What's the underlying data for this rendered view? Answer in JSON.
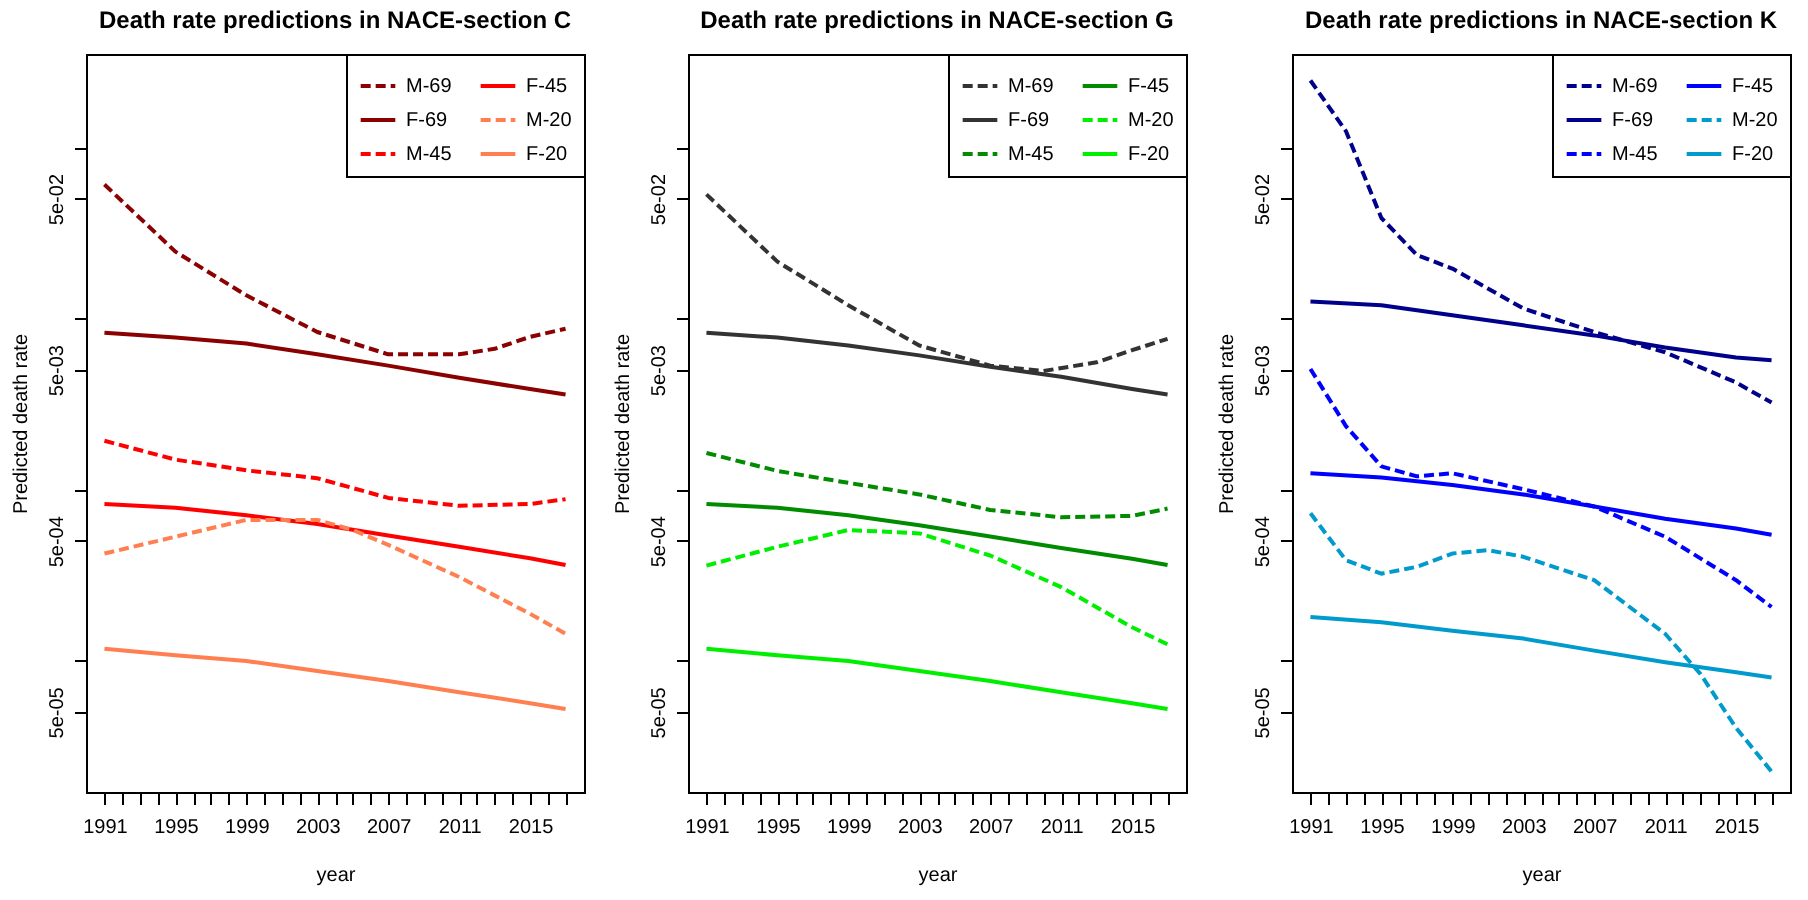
{
  "chart_data": [
    {
      "type": "line",
      "title": "Death rate predictions in NACE-section C",
      "xlabel": "year",
      "ylabel": "Predicted death rate",
      "log": true,
      "legend": "top right",
      "x": [
        1991,
        1995,
        1999,
        2003,
        2007,
        2011,
        2015,
        2017
      ],
      "xlim": [
        1989.96,
        2018.04
      ],
      "ylim": [
        1.7e-05,
        0.35
      ],
      "xticks": [
        1991,
        {
          "value": 1992,
          "label": null
        },
        {
          "value": 1993,
          "label": null
        },
        {
          "value": 1994,
          "label": null
        },
        1995,
        {
          "value": 1996,
          "label": null
        },
        {
          "value": 1997,
          "label": null
        },
        {
          "value": 1998,
          "label": null
        },
        1999,
        {
          "value": 2000,
          "label": null
        },
        {
          "value": 2001,
          "label": null
        },
        {
          "value": 2002,
          "label": null
        },
        2003,
        {
          "value": 2004,
          "label": null
        },
        {
          "value": 2005,
          "label": null
        },
        {
          "value": 2006,
          "label": null
        },
        2007,
        {
          "value": 2008,
          "label": null
        },
        {
          "value": 2009,
          "label": null
        },
        {
          "value": 2010,
          "label": null
        },
        2011,
        {
          "value": 2012,
          "label": null
        },
        {
          "value": 2013,
          "label": null
        },
        {
          "value": 2014,
          "label": null
        },
        2015,
        {
          "value": 2016,
          "label": null
        },
        {
          "value": 2017,
          "label": null
        }
      ],
      "yticks": [
        {
          "value": 0.1,
          "label": null
        },
        {
          "value": 0.05,
          "label": "5e-02"
        },
        {
          "value": 0.01,
          "label": null
        },
        {
          "value": 0.005,
          "label": "5e-03"
        },
        {
          "value": 0.001,
          "label": null
        },
        {
          "value": 0.0005,
          "label": "5e-04"
        },
        {
          "value": 0.0001,
          "label": null
        },
        {
          "value": 5e-05,
          "label": "5e-05"
        }
      ],
      "series": [
        {
          "name": "M-69",
          "color": "#8b0000",
          "line_style": "dashed",
          "x": [
            1991,
            1995,
            1999,
            2003,
            2007,
            2011,
            2013,
            2015,
            2017
          ],
          "values": [
            0.0604,
            0.0245,
            0.0136,
            0.0083,
            0.00615,
            0.00615,
            0.00662,
            0.00778,
            0.00867
          ]
        },
        {
          "name": "F-69",
          "color": "#8b0000",
          "line_style": "solid",
          "values": [
            0.00822,
            0.0077,
            0.00711,
            0.00615,
            0.00528,
            0.00449,
            0.00385,
            0.00358
          ]
        },
        {
          "name": "M-45",
          "color": "#ff0000",
          "line_style": "dashed",
          "values": [
            0.00192,
            0.00149,
            0.00129,
            0.00116,
            0.00089,
            0.0008,
            0.00082,
            0.000875
          ]
        },
        {
          "name": "F-45",
          "color": "#ff0000",
          "line_style": "solid",
          "values": [
            0.00082,
            0.00078,
            0.000705,
            0.000627,
            0.000537,
            0.000461,
            0.000395,
            0.000361
          ]
        },
        {
          "name": "M-20",
          "color": "#ff7f50",
          "line_style": "dashed",
          "x": [
            1991,
            1995,
            1999,
            2003,
            2005,
            2007,
            2011,
            2015,
            2017
          ],
          "values": [
            0.000421,
            0.000528,
            0.000662,
            0.000662,
            0.000578,
            0.000473,
            0.000307,
            0.000187,
            0.000143
          ]
        },
        {
          "name": "F-20",
          "color": "#ff7f50",
          "line_style": "solid",
          "values": [
            0.000117,
            0.000107,
            9.91e-05,
            8.67e-05,
            7.57e-05,
            6.5e-05,
            5.62e-05,
            5.19e-05
          ]
        }
      ]
    },
    {
      "type": "line",
      "title": "Death rate predictions in NACE-section G",
      "xlabel": "year",
      "ylabel": "Predicted death rate",
      "log": true,
      "legend": "top right",
      "x": [
        1991,
        1995,
        1999,
        2003,
        2007,
        2011,
        2015,
        2017
      ],
      "xlim": [
        1989.96,
        2018.04
      ],
      "ylim": [
        1.7e-05,
        0.35
      ],
      "xticks": [
        1991,
        {
          "value": 1992,
          "label": null
        },
        {
          "value": 1993,
          "label": null
        },
        {
          "value": 1994,
          "label": null
        },
        1995,
        {
          "value": 1996,
          "label": null
        },
        {
          "value": 1997,
          "label": null
        },
        {
          "value": 1998,
          "label": null
        },
        1999,
        {
          "value": 2000,
          "label": null
        },
        {
          "value": 2001,
          "label": null
        },
        {
          "value": 2002,
          "label": null
        },
        2003,
        {
          "value": 2004,
          "label": null
        },
        {
          "value": 2005,
          "label": null
        },
        {
          "value": 2006,
          "label": null
        },
        2007,
        {
          "value": 2008,
          "label": null
        },
        {
          "value": 2009,
          "label": null
        },
        {
          "value": 2010,
          "label": null
        },
        2011,
        {
          "value": 2012,
          "label": null
        },
        {
          "value": 2013,
          "label": null
        },
        {
          "value": 2014,
          "label": null
        },
        2015,
        {
          "value": 2016,
          "label": null
        },
        {
          "value": 2017,
          "label": null
        }
      ],
      "yticks": [
        {
          "value": 0.1,
          "label": null
        },
        {
          "value": 0.05,
          "label": "5e-02"
        },
        {
          "value": 0.01,
          "label": null
        },
        {
          "value": 0.005,
          "label": "5e-03"
        },
        {
          "value": 0.001,
          "label": null
        },
        {
          "value": 0.0005,
          "label": "5e-04"
        },
        {
          "value": 0.0001,
          "label": null
        },
        {
          "value": 5e-05,
          "label": "5e-05"
        }
      ],
      "series": [
        {
          "name": "M-69",
          "color": "#333333",
          "line_style": "dashed",
          "x": [
            1991,
            1995,
            1999,
            2003,
            2007,
            2010,
            2013,
            2015,
            2017
          ],
          "values": [
            0.0529,
            0.0214,
            0.0119,
            0.00692,
            0.00528,
            0.00491,
            0.00552,
            0.0065,
            0.00757
          ]
        },
        {
          "name": "F-69",
          "color": "#333333",
          "line_style": "solid",
          "values": [
            0.00822,
            0.0077,
            0.00692,
            0.00606,
            0.0052,
            0.00454,
            0.00385,
            0.00358
          ]
        },
        {
          "name": "M-45",
          "color": "#008b00",
          "line_style": "dashed",
          "values": [
            0.00163,
            0.00128,
            0.00109,
            0.000933,
            0.000757,
            0.000686,
            0.000699,
            0.000771
          ]
        },
        {
          "name": "F-45",
          "color": "#008b00",
          "line_style": "solid",
          "values": [
            0.00082,
            0.00078,
            0.000705,
            0.000616,
            0.000529,
            0.000454,
            0.000392,
            0.000361
          ]
        },
        {
          "name": "M-20",
          "color": "#00ee00",
          "line_style": "dashed",
          "values": [
            0.000358,
            0.000461,
            0.000578,
            0.000552,
            0.00041,
            0.000268,
            0.000156,
            0.000124
          ]
        },
        {
          "name": "F-20",
          "color": "#00ee00",
          "line_style": "solid",
          "values": [
            0.000117,
            0.000107,
            9.91e-05,
            8.67e-05,
            7.57e-05,
            6.5e-05,
            5.62e-05,
            5.19e-05
          ]
        }
      ]
    },
    {
      "type": "line",
      "title": "Death rate predictions in NACE-section K",
      "xlabel": "year",
      "ylabel": "Predicted death rate",
      "log": true,
      "legend": "top right",
      "x": [
        1991,
        1995,
        1999,
        2003,
        2007,
        2011,
        2015,
        2017
      ],
      "xlim": [
        1989.96,
        2018.04
      ],
      "ylim": [
        1.7e-05,
        0.35
      ],
      "xticks": [
        1991,
        {
          "value": 1992,
          "label": null
        },
        {
          "value": 1993,
          "label": null
        },
        {
          "value": 1994,
          "label": null
        },
        1995,
        {
          "value": 1996,
          "label": null
        },
        {
          "value": 1997,
          "label": null
        },
        {
          "value": 1998,
          "label": null
        },
        1999,
        {
          "value": 2000,
          "label": null
        },
        {
          "value": 2001,
          "label": null
        },
        {
          "value": 2002,
          "label": null
        },
        2003,
        {
          "value": 2004,
          "label": null
        },
        {
          "value": 2005,
          "label": null
        },
        {
          "value": 2006,
          "label": null
        },
        2007,
        {
          "value": 2008,
          "label": null
        },
        {
          "value": 2009,
          "label": null
        },
        {
          "value": 2010,
          "label": null
        },
        2011,
        {
          "value": 2012,
          "label": null
        },
        {
          "value": 2013,
          "label": null
        },
        {
          "value": 2014,
          "label": null
        },
        2015,
        {
          "value": 2016,
          "label": null
        },
        {
          "value": 2017,
          "label": null
        }
      ],
      "yticks": [
        {
          "value": 0.1,
          "label": null
        },
        {
          "value": 0.05,
          "label": "5e-02"
        },
        {
          "value": 0.01,
          "label": null
        },
        {
          "value": 0.005,
          "label": "5e-03"
        },
        {
          "value": 0.001,
          "label": null
        },
        {
          "value": 0.0005,
          "label": "5e-04"
        },
        {
          "value": 0.0001,
          "label": null
        },
        {
          "value": 5e-05,
          "label": "5e-05"
        }
      ],
      "series": [
        {
          "name": "M-69",
          "color": "#00008b",
          "line_style": "dashed",
          "x": [
            1991,
            1993,
            1995,
            1997,
            1999,
            2003,
            2007,
            2011,
            2015,
            2017
          ],
          "values": [
            0.245,
            0.124,
            0.0385,
            0.0234,
            0.0195,
            0.0114,
            0.0083,
            0.00632,
            0.00421,
            0.00321
          ]
        },
        {
          "name": "F-69",
          "color": "#00008b",
          "line_style": "solid",
          "values": [
            0.0125,
            0.0119,
            0.0104,
            0.00908,
            0.00793,
            0.00673,
            0.00589,
            0.00568
          ]
        },
        {
          "name": "M-45",
          "color": "#0000ff",
          "line_style": "dashed",
          "x": [
            1991,
            1993,
            1995,
            1997,
            1999,
            2003,
            2007,
            2011,
            2015,
            2017
          ],
          "values": [
            0.00505,
            0.00234,
            0.00136,
            0.00119,
            0.00124,
            0.001,
            0.000793,
            0.000528,
            0.000294,
            0.000205
          ]
        },
        {
          "name": "F-45",
          "color": "#0000ff",
          "line_style": "solid",
          "values": [
            0.00124,
            0.00117,
            0.00106,
            0.000933,
            0.000793,
            0.000673,
            0.000589,
            0.000542
          ]
        },
        {
          "name": "M-20",
          "color": "#009acd",
          "line_style": "dashed",
          "x": [
            1991,
            1993,
            1995,
            1997,
            1999,
            2001,
            2003,
            2007,
            2011,
            2013,
            2015,
            2017
          ],
          "values": [
            0.000724,
            0.000385,
            0.000321,
            0.000352,
            0.000421,
            0.000441,
            0.000403,
            0.000294,
            0.000143,
            8.3e-05,
            4.03e-05,
            2.24e-05
          ]
        },
        {
          "name": "F-20",
          "color": "#009acd",
          "line_style": "solid",
          "values": [
            0.000179,
            0.000167,
            0.000149,
            0.000134,
            0.000114,
            9.75e-05,
            8.51e-05,
            7.93e-05
          ]
        }
      ]
    }
  ]
}
